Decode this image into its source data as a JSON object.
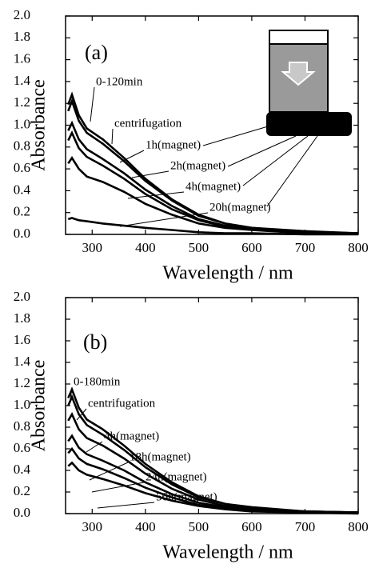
{
  "chart_data": [
    {
      "type": "line",
      "panel_label": "(a)",
      "xlabel": "Wavelength / nm",
      "ylabel": "Absorbance",
      "x": [
        255,
        262,
        275,
        290,
        320,
        360,
        400,
        450,
        500,
        550,
        600,
        700,
        800
      ],
      "series": [
        {
          "name": "0-120min",
          "color": "#000000",
          "values": [
            1.19,
            1.28,
            1.09,
            0.97,
            0.87,
            0.7,
            0.51,
            0.32,
            0.18,
            0.1,
            0.06,
            0.03,
            0.01
          ]
        },
        {
          "name": "centrifugation",
          "color": "#000000",
          "values": [
            1.13,
            1.22,
            1.04,
            0.93,
            0.83,
            0.67,
            0.49,
            0.31,
            0.17,
            0.1,
            0.06,
            0.02,
            0.01
          ]
        },
        {
          "name": "1h(magnet)",
          "color": "#000000",
          "values": [
            0.95,
            1.02,
            0.87,
            0.78,
            0.69,
            0.56,
            0.41,
            0.26,
            0.14,
            0.08,
            0.05,
            0.02,
            0.01
          ]
        },
        {
          "name": "2h(magnet)",
          "color": "#000000",
          "values": [
            0.86,
            0.93,
            0.79,
            0.71,
            0.63,
            0.51,
            0.37,
            0.23,
            0.13,
            0.07,
            0.05,
            0.02,
            0.01
          ]
        },
        {
          "name": "4h(magnet)",
          "color": "#000000",
          "values": [
            0.65,
            0.7,
            0.6,
            0.53,
            0.48,
            0.39,
            0.28,
            0.18,
            0.1,
            0.06,
            0.04,
            0.01,
            0.01
          ]
        },
        {
          "name": "20h(magnet)",
          "color": "#000000",
          "values": [
            0.14,
            0.15,
            0.13,
            0.12,
            0.1,
            0.08,
            0.06,
            0.04,
            0.02,
            0.01,
            0.01,
            0.0,
            0.0
          ]
        }
      ],
      "xlim": [
        250,
        800
      ],
      "ylim": [
        0,
        2
      ],
      "xticks": [
        300,
        400,
        500,
        600,
        700,
        800
      ],
      "yticks": [
        {
          "value": 0,
          "label": "0.0"
        },
        0.2,
        0.4,
        0.6,
        0.8,
        {
          "value": 1,
          "label": "1.0"
        },
        1.2,
        1.4,
        1.6,
        1.8,
        {
          "value": 2,
          "label": "2.0"
        }
      ]
    },
    {
      "type": "line",
      "panel_label": "(b)",
      "xlabel": "Wavelength / nm",
      "ylabel": "Absorbance",
      "x": [
        255,
        262,
        275,
        290,
        320,
        360,
        400,
        450,
        500,
        550,
        600,
        700,
        800
      ],
      "series": [
        {
          "name": "0-180min",
          "color": "#000000",
          "values": [
            1.07,
            1.15,
            0.98,
            0.87,
            0.78,
            0.63,
            0.46,
            0.29,
            0.16,
            0.09,
            0.06,
            0.02,
            0.01
          ]
        },
        {
          "name": "centrifugation",
          "color": "#000000",
          "values": [
            1.0,
            1.08,
            0.92,
            0.82,
            0.73,
            0.59,
            0.43,
            0.27,
            0.15,
            0.09,
            0.05,
            0.02,
            0.01
          ]
        },
        {
          "name": "4h(magnet)",
          "color": "#000000",
          "values": [
            0.86,
            0.92,
            0.78,
            0.7,
            0.63,
            0.51,
            0.37,
            0.23,
            0.13,
            0.07,
            0.05,
            0.02,
            0.01
          ]
        },
        {
          "name": "18h(magnet)",
          "color": "#000000",
          "values": [
            0.67,
            0.72,
            0.61,
            0.55,
            0.49,
            0.4,
            0.29,
            0.18,
            0.1,
            0.06,
            0.04,
            0.01,
            0.01
          ]
        },
        {
          "name": "24h(magnet)",
          "color": "#000000",
          "values": [
            0.56,
            0.6,
            0.51,
            0.46,
            0.41,
            0.33,
            0.24,
            0.15,
            0.08,
            0.05,
            0.03,
            0.01,
            0.01
          ]
        },
        {
          "name": "56h(magnet)",
          "color": "#000000",
          "values": [
            0.44,
            0.47,
            0.4,
            0.36,
            0.32,
            0.26,
            0.19,
            0.12,
            0.07,
            0.04,
            0.02,
            0.01,
            0.0
          ]
        }
      ],
      "xlim": [
        250,
        800
      ],
      "ylim": [
        0,
        2
      ],
      "xticks": [
        300,
        400,
        500,
        600,
        700,
        800
      ],
      "yticks": [
        {
          "value": 0,
          "label": "0.0"
        },
        0.2,
        0.4,
        0.6,
        0.8,
        {
          "value": 1,
          "label": "1.0"
        },
        1.2,
        1.4,
        1.6,
        1.8,
        {
          "value": 2,
          "label": "2.0"
        }
      ]
    }
  ]
}
